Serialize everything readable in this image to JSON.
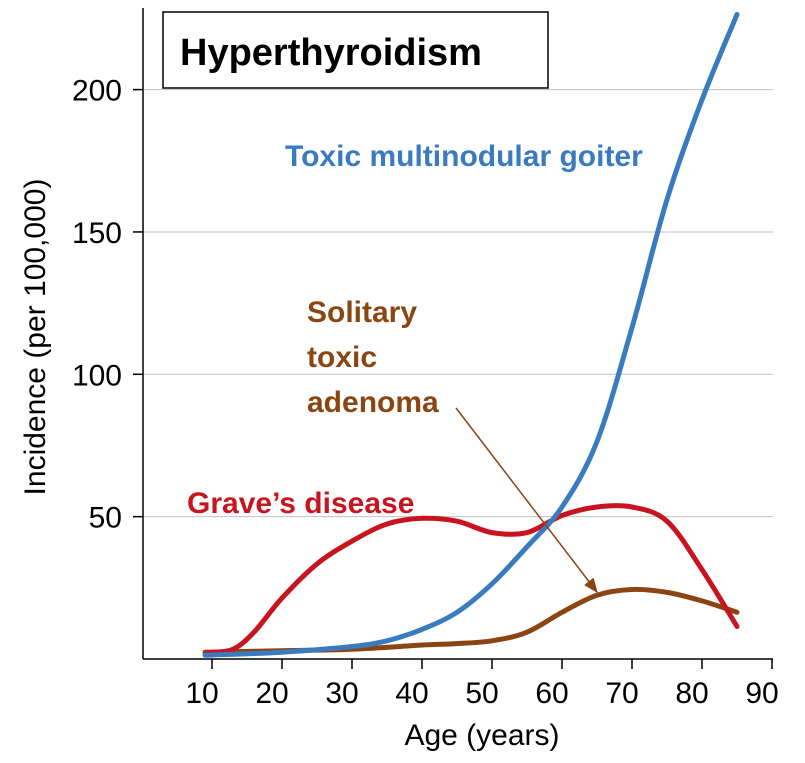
{
  "chart_data": {
    "type": "line",
    "title": "Hyperthyroidism",
    "xlabel": "Age (years)",
    "ylabel": "Incidence (per 100,000)",
    "xlim": [
      0,
      90
    ],
    "ylim": [
      0,
      230
    ],
    "x_ticks": [
      10,
      20,
      30,
      40,
      50,
      60,
      70,
      80,
      90
    ],
    "y_ticks": [
      50,
      100,
      150,
      200
    ],
    "grid": "horizontal",
    "series": [
      {
        "name": "Toxic multinodular goiter",
        "color": "#3A7BC0",
        "x": [
          5,
          10,
          20,
          30,
          35,
          40,
          45,
          50,
          55,
          60,
          65,
          70,
          75,
          80,
          85
        ],
        "y": [
          0,
          0,
          1,
          3,
          5,
          9,
          15,
          25,
          38,
          52,
          75,
          115,
          160,
          195,
          225
        ]
      },
      {
        "name": "Grave’s disease",
        "color": "#C8141E",
        "x": [
          5,
          10,
          13,
          16,
          20,
          25,
          30,
          35,
          40,
          45,
          50,
          55,
          60,
          65,
          70,
          75,
          80,
          85
        ],
        "y": [
          1,
          1,
          2,
          8,
          20,
          32,
          40,
          46,
          48,
          47,
          43,
          43,
          49,
          52,
          52,
          47,
          30,
          10
        ]
      },
      {
        "name": "Solitary toxic adenoma",
        "label_lines": [
          "Solitary",
          "toxic",
          "adenoma"
        ],
        "color": "#8B4513",
        "x": [
          5,
          10,
          20,
          30,
          40,
          45,
          50,
          55,
          60,
          65,
          70,
          75,
          80,
          85
        ],
        "y": [
          1,
          1,
          1.5,
          2,
          3.5,
          4,
          5,
          8,
          15,
          21,
          23,
          22,
          19,
          15
        ]
      }
    ]
  }
}
